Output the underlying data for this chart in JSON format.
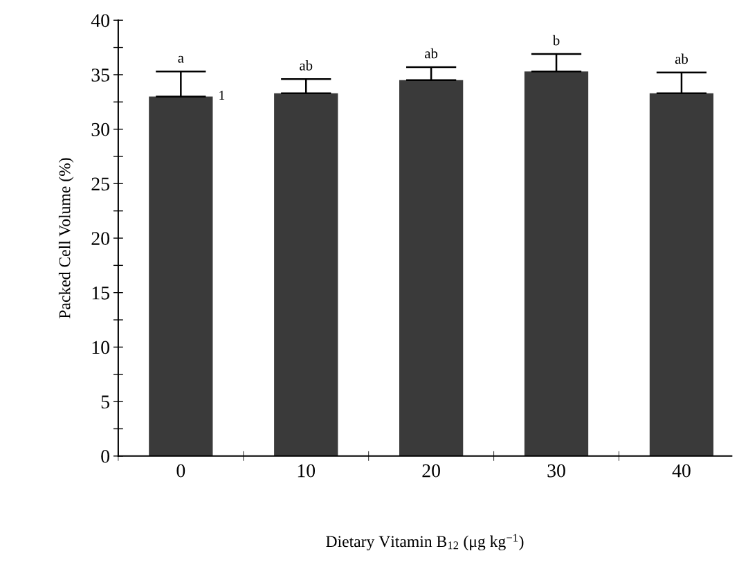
{
  "chart_data": {
    "type": "bar",
    "xlabel": "Dietary Vitamin B$_{12}$ (μg kg$^{−1}$)",
    "ylabel": "Packed Cell Volume (%)",
    "categories": [
      "0",
      "10",
      "20",
      "30",
      "40"
    ],
    "values": [
      33,
      33.3,
      34.5,
      35.3,
      33.3
    ],
    "errors": [
      [
        33,
        35.3
      ],
      [
        33.3,
        34.6
      ],
      [
        34.5,
        35.7
      ],
      [
        35.3,
        36.9
      ],
      [
        33.3,
        35.2
      ]
    ],
    "color": "#3a3a3a",
    "ylim": [
      0,
      40
    ],
    "yticks": [
      0,
      {
        "value": 2.5,
        "label": null
      },
      5,
      {
        "value": 7.5,
        "label": null
      },
      10,
      {
        "value": 12.5,
        "label": null
      },
      15,
      {
        "value": 17.5,
        "label": null
      },
      20,
      {
        "value": 22.5,
        "label": null
      },
      25,
      {
        "value": 27.5,
        "label": null
      },
      30,
      {
        "value": 32.5,
        "label": null
      },
      35,
      {
        "value": 37.5,
        "label": null
      },
      40
    ],
    "grid": false,
    "legend": false,
    "annotations": [
      {
        "text": "a",
        "x": "0",
        "y": 35.3
      },
      {
        "text": "ab",
        "x": "10",
        "y": 34.6
      },
      {
        "text": "ab",
        "x": "20",
        "y": 35.7
      },
      {
        "text": "b",
        "x": "30",
        "y": 36.9
      },
      {
        "text": "ab",
        "x": "40",
        "y": 35.2
      },
      {
        "text": "1",
        "x": "0",
        "y": 33
      }
    ]
  }
}
